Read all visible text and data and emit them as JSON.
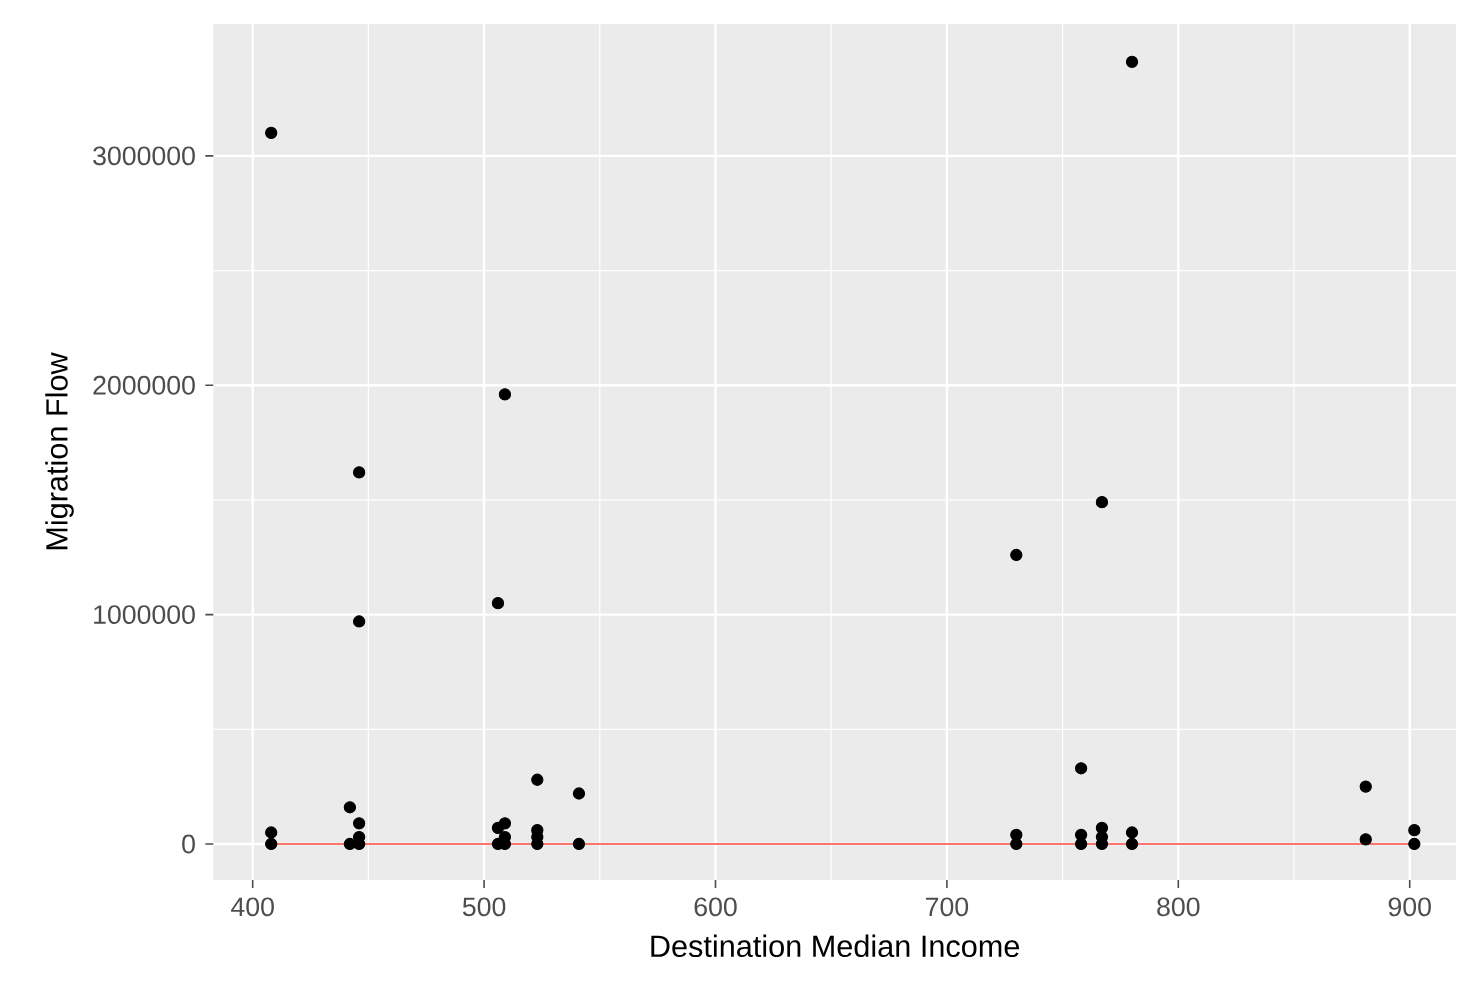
{
  "chart_data": {
    "type": "scatter",
    "xlabel": "Destination Median Income",
    "ylabel": "Migration Flow",
    "xlim": [
      383,
      920
    ],
    "ylim": [
      -157000,
      3575000
    ],
    "xticks": [
      400,
      500,
      600,
      700,
      800,
      900
    ],
    "yticks": [
      0,
      1000000,
      2000000,
      3000000
    ],
    "grid": true,
    "series": [
      {
        "marker": "circle",
        "color": "#000000",
        "x": [
          408,
          408,
          408,
          442,
          442,
          446,
          446,
          446,
          446,
          446,
          506,
          506,
          506,
          509,
          509,
          509,
          509,
          523,
          523,
          523,
          523,
          541,
          541,
          730,
          730,
          730,
          758,
          758,
          758,
          767,
          767,
          767,
          767,
          780,
          780,
          780,
          881,
          881,
          902,
          902
        ],
        "values": [
          3100000,
          50000,
          0,
          160000,
          0,
          1620000,
          970000,
          90000,
          30000,
          0,
          1050000,
          70000,
          0,
          1960000,
          90000,
          30000,
          0,
          280000,
          60000,
          30000,
          0,
          220000,
          0,
          1260000,
          40000,
          0,
          330000,
          40000,
          0,
          1490000,
          70000,
          30000,
          0,
          3410000,
          50000,
          0,
          250000,
          20000,
          60000,
          0
        ]
      },
      {
        "type": "line",
        "color": "#f8766d",
        "marker": "none",
        "x": [
          408,
          902
        ],
        "values": [
          0,
          0
        ]
      }
    ]
  }
}
